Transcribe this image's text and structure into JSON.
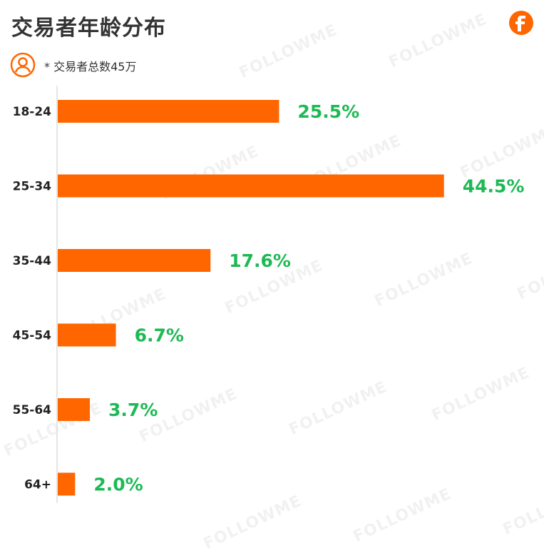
{
  "header": {
    "title": "交易者年龄分布",
    "note": "* 交易者总数45万",
    "logo": "followme-f-logo-icon",
    "note_icon": "user-circle-icon"
  },
  "watermark": "FOLLOWME",
  "colors": {
    "bar": "#ff6600",
    "label": "#1db954",
    "axis": "#e5e5e5",
    "category": "#222222",
    "brand": "#ff6600"
  },
  "chart_data": {
    "type": "bar",
    "orientation": "horizontal",
    "title": "交易者年龄分布",
    "subtitle": "* 交易者总数45万",
    "categories": [
      "18-24",
      "25-34",
      "35-44",
      "45-54",
      "55-64",
      "64+"
    ],
    "values": [
      25.5,
      44.5,
      17.6,
      6.7,
      3.7,
      2.0
    ],
    "data_labels": [
      "25.5%",
      "44.5%",
      "17.6%",
      "6.7%",
      "3.7%",
      "2.0%"
    ],
    "unit": "%",
    "xlim": [
      0,
      46
    ],
    "grid": false,
    "legend": "none"
  }
}
